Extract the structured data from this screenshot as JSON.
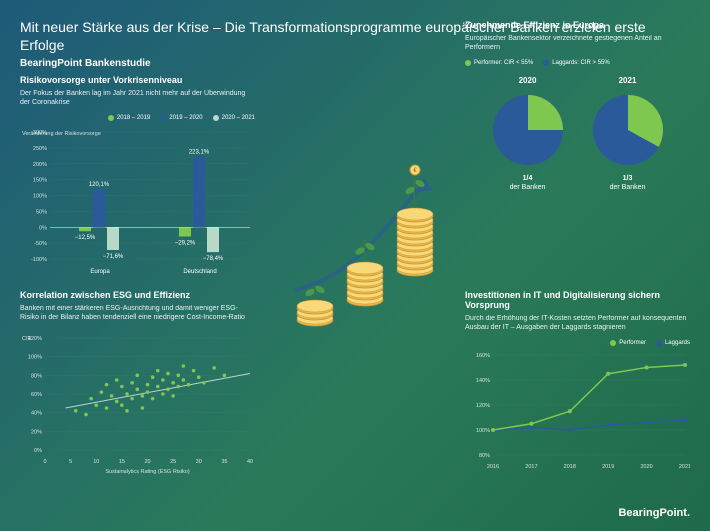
{
  "header": {
    "title": "Mit neuer Stärke aus der Krise – Die Transformationsprogramme europäischer Banken erzielen erste Erfolge",
    "subtitle": "BearingPoint Bankenstudie"
  },
  "colors": {
    "performer": "#7ec850",
    "laggard": "#2a5a9a",
    "series1": "#7ec850",
    "series2": "#2a5a9a",
    "series3": "#b8d8c8",
    "grid": "#5a8a8a",
    "text": "#ffffff"
  },
  "risiko": {
    "title": "Risikovorsorge unter Vorkrisenniveau",
    "desc": "Der Fokus der Banken lag im Jahr 2021 nicht mehr auf der Überwindung der Coronakrise",
    "legend": [
      {
        "label": "2018 – 2019",
        "color": "#7ec850"
      },
      {
        "label": "2019 – 2020",
        "color": "#2a5a9a"
      },
      {
        "label": "2020 – 2021",
        "color": "#b8d8c8"
      }
    ],
    "ylabel": "Veränderung der Risikovorsorge",
    "ylim": [
      -100,
      300
    ],
    "ytick_step": 50,
    "groups": [
      {
        "name": "Europa",
        "values": [
          -12.5,
          120.1,
          -71.6
        ],
        "labels": [
          "−12,5%",
          "120,1%",
          "−71,6%"
        ]
      },
      {
        "name": "Deutschland",
        "values": [
          -29.2,
          223.1,
          -78.4
        ],
        "labels": [
          "−29,2%",
          "223,1%",
          "−78,4%"
        ]
      }
    ]
  },
  "esg": {
    "title": "Korrelation zwischen ESG und Effizienz",
    "desc": "Banken mit einer stärkeren ESG-Ausrichtung und damit weniger ESG-Risiko in der Bilanz haben tendenziell eine niedrigere Cost-Income-Ratio",
    "ylabel": "CIR",
    "xlabel": "Sustainalytics Rating (ESG Risiko)",
    "xlim": [
      0,
      40
    ],
    "ylim": [
      0,
      120
    ],
    "xtick_step": 5,
    "ytick_step": 20,
    "points": [
      [
        6,
        42
      ],
      [
        8,
        38
      ],
      [
        9,
        55
      ],
      [
        10,
        48
      ],
      [
        11,
        62
      ],
      [
        12,
        45
      ],
      [
        12,
        70
      ],
      [
        13,
        58
      ],
      [
        14,
        52
      ],
      [
        14,
        75
      ],
      [
        15,
        48
      ],
      [
        15,
        68
      ],
      [
        16,
        60
      ],
      [
        16,
        42
      ],
      [
        17,
        72
      ],
      [
        17,
        55
      ],
      [
        18,
        65
      ],
      [
        18,
        80
      ],
      [
        19,
        58
      ],
      [
        19,
        45
      ],
      [
        20,
        70
      ],
      [
        20,
        62
      ],
      [
        21,
        78
      ],
      [
        21,
        55
      ],
      [
        22,
        68
      ],
      [
        22,
        85
      ],
      [
        23,
        60
      ],
      [
        23,
        75
      ],
      [
        24,
        82
      ],
      [
        24,
        65
      ],
      [
        25,
        72
      ],
      [
        25,
        58
      ],
      [
        26,
        80
      ],
      [
        26,
        68
      ],
      [
        27,
        75
      ],
      [
        27,
        90
      ],
      [
        28,
        70
      ],
      [
        29,
        85
      ],
      [
        30,
        78
      ],
      [
        31,
        72
      ],
      [
        33,
        88
      ],
      [
        35,
        80
      ]
    ],
    "trendline": [
      [
        4,
        45
      ],
      [
        40,
        82
      ]
    ],
    "point_color": "#7ec850"
  },
  "effizienz": {
    "title": "Zunehmende Effizienz in Europa",
    "desc": "Europäischer Bankensektor verzeichnete gestiegenen Anteil an Performern",
    "legend": [
      {
        "label": "Performer: CIR < 55%",
        "color": "#7ec850"
      },
      {
        "label": "Laggards: CIR > 55%",
        "color": "#2a5a9a"
      }
    ],
    "pies": [
      {
        "year": "2020",
        "performer_pct": 25,
        "caption_top": "1/4",
        "caption_bottom": "der Banken"
      },
      {
        "year": "2021",
        "performer_pct": 33,
        "caption_top": "1/3",
        "caption_bottom": "der Banken"
      }
    ]
  },
  "it": {
    "title": "Investitionen in IT und Digitalisierung sichern Vorsprung",
    "desc": "Durch die Erhöhung der IT-Kosten setzten Performer auf konsequenten Ausbau der IT – Ausgaben der Laggards stagnieren",
    "legend": [
      {
        "label": "Performer",
        "color": "#7ec850"
      },
      {
        "label": "Laggards",
        "color": "#2a5a9a"
      }
    ],
    "xlabels": [
      "2016",
      "2017",
      "2018",
      "2019",
      "2020",
      "2021"
    ],
    "ylim": [
      80,
      160
    ],
    "ytick_step": 20,
    "performer": [
      100,
      105,
      115,
      145,
      150,
      152
    ],
    "laggards": [
      100,
      102,
      100,
      104,
      106,
      108
    ]
  },
  "brand": "BearingPoint"
}
